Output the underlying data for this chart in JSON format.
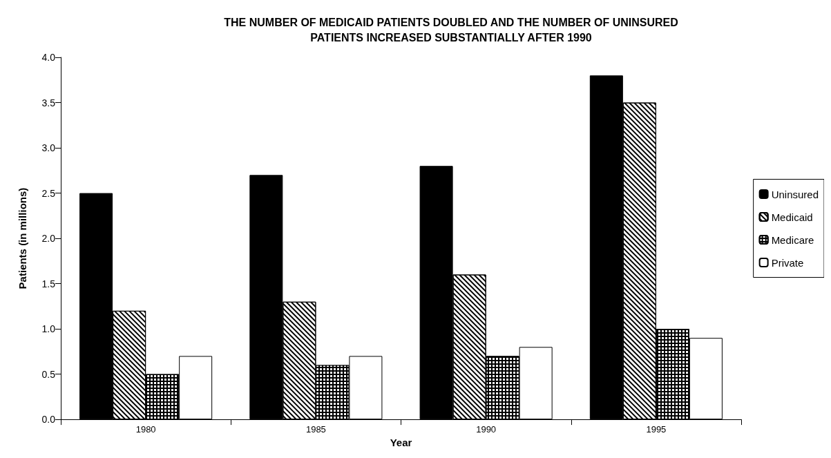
{
  "chart_data": {
    "type": "bar",
    "title": "THE NUMBER OF MEDICAID PATIENTS DOUBLED AND THE NUMBER OF UNINSURED\nPATIENTS INCREASED SUBSTANTIALLY AFTER 1990",
    "xlabel": "Year",
    "ylabel": "Patients (in millions)",
    "categories": [
      "1980",
      "1985",
      "1990",
      "1995"
    ],
    "series": [
      {
        "name": "Uninsured",
        "color": "#000000",
        "values": [
          2.5,
          2.7,
          2.8,
          3.8
        ]
      },
      {
        "name": "Medicaid",
        "color": "#ffffff",
        "values": [
          1.2,
          1.3,
          1.6,
          3.5
        ]
      },
      {
        "name": "Medicare",
        "color": "#000000",
        "values": [
          0.5,
          0.6,
          0.7,
          1.0
        ]
      },
      {
        "name": "Private",
        "color": "#ffffff",
        "values": [
          0.7,
          0.7,
          0.8,
          0.9
        ]
      }
    ],
    "ylim": [
      0,
      4
    ],
    "yticks": [
      {
        "value": 0,
        "label": "0.0"
      },
      {
        "value": 0.5,
        "label": "0.5"
      },
      {
        "value": 1,
        "label": "1.0"
      },
      {
        "value": 1.5,
        "label": "1.5"
      },
      {
        "value": 2,
        "label": "2.0"
      },
      {
        "value": 2.5,
        "label": "2.5"
      },
      {
        "value": 3,
        "label": "3.0"
      },
      {
        "value": 3.5,
        "label": "3.5"
      },
      {
        "value": 4,
        "label": "4.0"
      }
    ],
    "grid": false,
    "legend": "right"
  }
}
